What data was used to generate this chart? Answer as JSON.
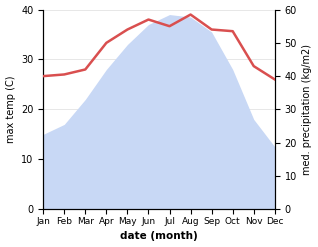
{
  "months": [
    "Jan",
    "Feb",
    "Mar",
    "Apr",
    "May",
    "Jun",
    "Jul",
    "Aug",
    "Sep",
    "Oct",
    "Nov",
    "Dec"
  ],
  "temp": [
    15.0,
    17.0,
    22.0,
    28.0,
    33.0,
    37.0,
    39.0,
    38.5,
    35.5,
    28.0,
    18.0,
    12.5
  ],
  "precip": [
    40.0,
    40.5,
    42.0,
    50.0,
    54.0,
    57.0,
    55.0,
    58.5,
    54.0,
    53.5,
    43.0,
    39.0
  ],
  "temp_color": "#d94f4f",
  "temp_fill_color": "#c8d8f5",
  "temp_ylim": [
    0,
    40
  ],
  "precip_ylim": [
    0,
    60
  ],
  "xlabel": "date (month)",
  "ylabel_left": "max temp (C)",
  "ylabel_right": "med. precipitation (kg/m2)",
  "temp_lw": 1.8,
  "figsize": [
    3.18,
    2.47
  ],
  "dpi": 100,
  "yticks_left": [
    0,
    10,
    20,
    30,
    40
  ],
  "yticks_right": [
    0,
    10,
    20,
    30,
    40,
    50,
    60
  ]
}
